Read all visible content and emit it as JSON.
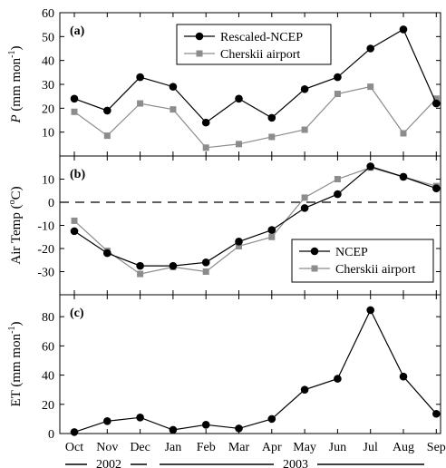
{
  "chart_data": [
    {
      "type": "line",
      "panel_label": "(a)",
      "ylabel_symbol": "P",
      "ylabel_units": "(mm mon",
      "ylabel_exp": "-1",
      "ylabel_close": ")",
      "ylim": [
        0,
        60
      ],
      "yticks": [
        "10",
        "20",
        "30",
        "40",
        "50",
        "60"
      ],
      "yticks_values": [
        10,
        20,
        30,
        40,
        50,
        60
      ],
      "categories": [
        "Oct",
        "Nov",
        "Dec",
        "Jan",
        "Feb",
        "Mar",
        "Apr",
        "May",
        "Jun",
        "Jul",
        "Aug",
        "Sep"
      ],
      "legend_position": "top-right",
      "grid": false,
      "series": [
        {
          "name": "Rescaled-NCEP",
          "color": "#000000",
          "marker": "circle",
          "values": [
            24,
            19,
            33,
            29,
            14,
            24,
            16,
            28,
            33,
            45,
            53,
            22
          ]
        },
        {
          "name": "Cherskii airport",
          "color": "#8c8c8c",
          "marker": "square",
          "values": [
            18.5,
            8.5,
            22,
            19.5,
            3.5,
            5,
            8,
            11,
            26,
            29,
            9.5,
            24
          ]
        }
      ]
    },
    {
      "type": "line",
      "panel_label": "(b)",
      "ylabel_text": "Air Temp (",
      "ylabel_exp": "o",
      "ylabel_unit": "C)",
      "ylim": [
        -40,
        20
      ],
      "yticks": [
        "-30",
        "-20",
        "-10",
        "0",
        "10"
      ],
      "yticks_values": [
        -30,
        -20,
        -10,
        0,
        10
      ],
      "zero_line": "dashed",
      "categories": [
        "Oct",
        "Nov",
        "Dec",
        "Jan",
        "Feb",
        "Mar",
        "Apr",
        "May",
        "Jun",
        "Jul",
        "Aug",
        "Sep"
      ],
      "legend_position": "bottom-right",
      "grid": false,
      "series": [
        {
          "name": "NCEP",
          "color": "#000000",
          "marker": "circle",
          "values": [
            -12.5,
            -22,
            -27.5,
            -27.5,
            -26,
            -17,
            -12,
            -2.5,
            3.5,
            15.5,
            11,
            6
          ]
        },
        {
          "name": "Cherskii airport",
          "color": "#8c8c8c",
          "marker": "square",
          "values": [
            -8,
            -21,
            -31,
            -28,
            -30,
            -19,
            -15,
            2,
            10,
            15,
            11,
            7
          ]
        }
      ]
    },
    {
      "type": "line",
      "panel_label": "(c)",
      "ylabel_text": "ET (mm mon",
      "ylabel_exp": "-1",
      "ylabel_close": ")",
      "ylim": [
        0,
        95
      ],
      "yticks": [
        "0",
        "20",
        "40",
        "60",
        "80"
      ],
      "yticks_values": [
        0,
        20,
        40,
        60,
        80
      ],
      "categories": [
        "Oct",
        "Nov",
        "Dec",
        "Jan",
        "Feb",
        "Mar",
        "Apr",
        "May",
        "Jun",
        "Jul",
        "Aug",
        "Sep"
      ],
      "grid": false,
      "series": [
        {
          "color": "#000000",
          "marker": "circle",
          "values": [
            1,
            8.5,
            11,
            2.5,
            6,
            3.5,
            10,
            30,
            37.5,
            84.5,
            39,
            13.5
          ]
        }
      ]
    }
  ],
  "x_axis": {
    "tick_labels": [
      "Oct",
      "Nov",
      "Dec",
      "Jan",
      "Feb",
      "Mar",
      "Apr",
      "May",
      "Jun",
      "Jul",
      "Aug",
      "Sep"
    ],
    "years": [
      "2002",
      "2003"
    ]
  }
}
